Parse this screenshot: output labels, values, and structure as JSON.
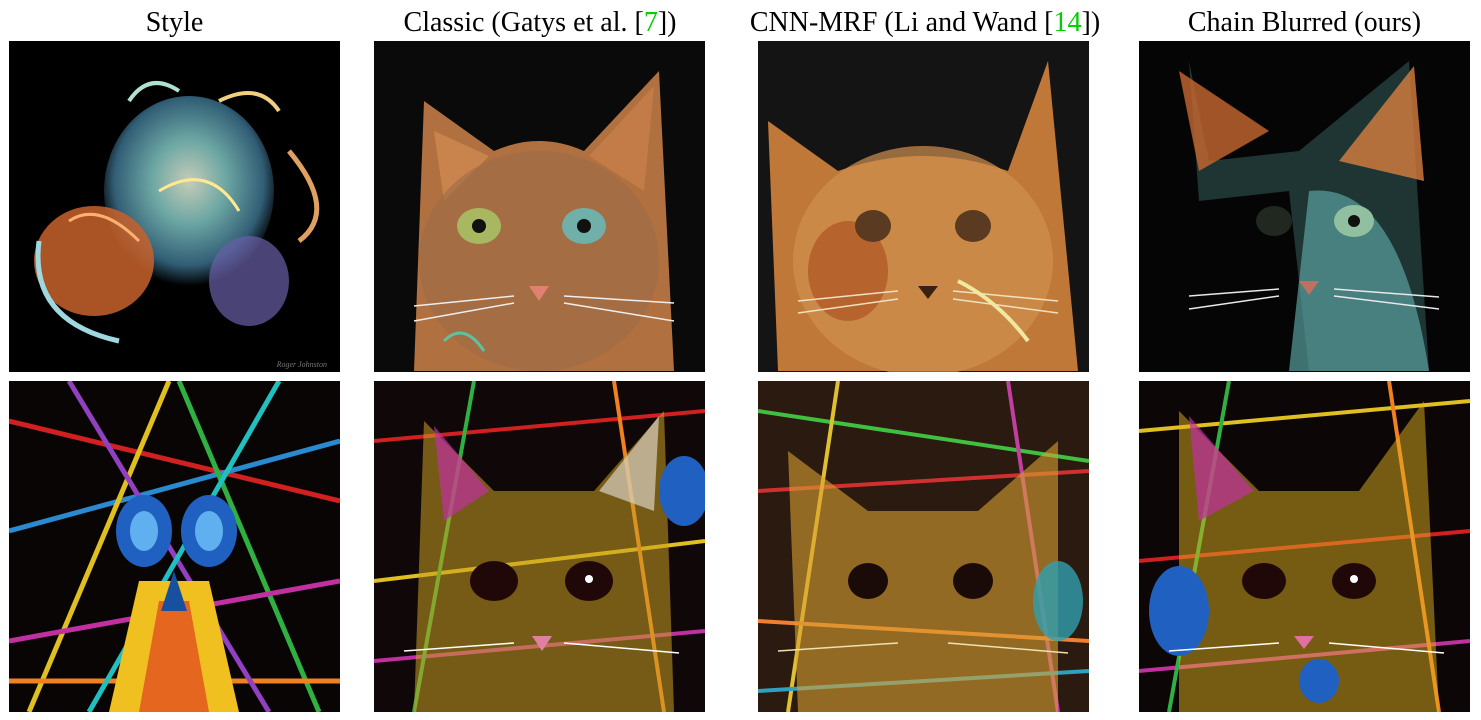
{
  "figure": {
    "columns": [
      {
        "id": "style",
        "pre": "Style",
        "cite": "",
        "post": ""
      },
      {
        "id": "classic",
        "pre": "Classic (Gatys et al. [",
        "cite": "7",
        "post": "])"
      },
      {
        "id": "cnnmrf",
        "pre": "CNN-MRF (Li and Wand [",
        "cite": "14",
        "post": "])"
      },
      {
        "id": "chain",
        "pre": "Chain Blurred (ours)",
        "cite": "",
        "post": ""
      }
    ],
    "rows": [
      {
        "id": "fractal",
        "cells": [
          {
            "subject": "fractal-swirl-artwork",
            "signature": "Roger Johnston"
          },
          {
            "subject": "cat-portrait"
          },
          {
            "subject": "cat-portrait"
          },
          {
            "subject": "cat-portrait"
          }
        ]
      },
      {
        "id": "skull",
        "cells": [
          {
            "subject": "colorful-skull-artwork"
          },
          {
            "subject": "cat-portrait"
          },
          {
            "subject": "cat-portrait"
          },
          {
            "subject": "cat-portrait"
          }
        ]
      }
    ],
    "citation_color": "#00d000"
  }
}
